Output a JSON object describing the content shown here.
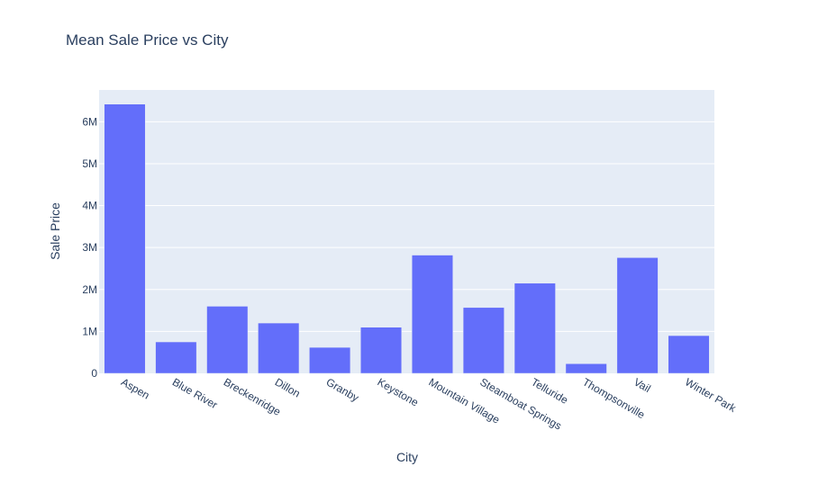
{
  "chart_data": {
    "type": "bar",
    "title": "Mean Sale Price vs City",
    "xlabel": "City",
    "ylabel": "Sale Price",
    "categories": [
      "Aspen",
      "Blue River",
      "Breckenridge",
      "Dillon",
      "Granby",
      "Keystone",
      "Mountain Village",
      "Steamboat Springs",
      "Telluride",
      "Thompsonville",
      "Vail",
      "Winter Park"
    ],
    "values": [
      6420000,
      750000,
      1600000,
      1200000,
      620000,
      1100000,
      2820000,
      1570000,
      2150000,
      230000,
      2760000,
      900000
    ],
    "ylim": [
      0,
      6757895
    ],
    "yticks": [
      0,
      1000000,
      2000000,
      3000000,
      4000000,
      5000000,
      6000000
    ],
    "ytick_labels": [
      "0",
      "1M",
      "2M",
      "3M",
      "4M",
      "5M",
      "6M"
    ],
    "bar_color": "#636efa",
    "plot_bgcolor": "#e5ecf6",
    "grid": true,
    "legend": "none"
  }
}
